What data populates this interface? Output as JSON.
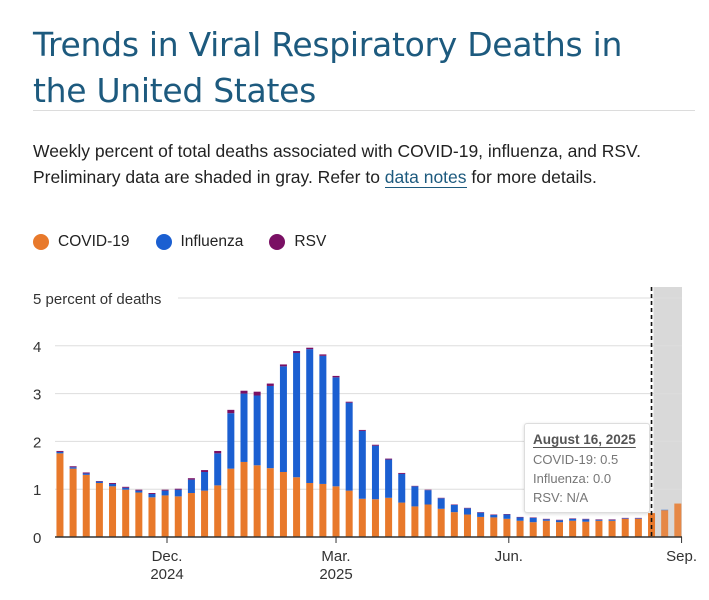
{
  "header": {
    "title": "Trends in Viral Respiratory Deaths in the United States",
    "subtitle_line1": "Weekly percent of total deaths associated with COVID-19, influenza, and RSV.",
    "subtitle_line2_pre": "Preliminary data are shaded in gray. Refer to ",
    "subtitle_link": "data notes",
    "subtitle_line2_post": " for more details."
  },
  "legend": [
    {
      "label": "COVID-19",
      "color": "#e8792b"
    },
    {
      "label": "Influenza",
      "color": "#1b5fd1"
    },
    {
      "label": "RSV",
      "color": "#7a1064"
    }
  ],
  "tooltip": {
    "date": "August 16, 2025",
    "covid": "COVID-19: 0.5",
    "flu": "Influenza: 0.0",
    "rsv": "RSV: N/A"
  },
  "chart_data": {
    "type": "bar",
    "stacked": true,
    "ylabel": "percent of deaths",
    "ylim": [
      0,
      5
    ],
    "yticks": [
      "0",
      "1",
      "2",
      "3",
      "4",
      "5 percent of deaths"
    ],
    "xticks": [
      {
        "date": "2024-12-01",
        "label": "Dec.",
        "sublabel": "2024"
      },
      {
        "date": "2025-03-01",
        "label": "Mar.",
        "sublabel": "2025"
      },
      {
        "date": "2025-06-01",
        "label": "Jun.",
        "sublabel": ""
      },
      {
        "date": "2025-09-01",
        "label": "Sep.",
        "sublabel": ""
      }
    ],
    "grid": true,
    "preliminary_from": "2025-08-16",
    "highlighted_week": "2025-08-16",
    "preliminary_color": "#d9d9d9",
    "x": [
      "2024-10-05",
      "2024-10-12",
      "2024-10-19",
      "2024-10-26",
      "2024-11-02",
      "2024-11-09",
      "2024-11-16",
      "2024-11-23",
      "2024-11-30",
      "2024-12-07",
      "2024-12-14",
      "2024-12-21",
      "2024-12-28",
      "2025-01-04",
      "2025-01-11",
      "2025-01-18",
      "2025-01-25",
      "2025-02-01",
      "2025-02-08",
      "2025-02-15",
      "2025-02-22",
      "2025-03-01",
      "2025-03-08",
      "2025-03-15",
      "2025-03-22",
      "2025-03-29",
      "2025-04-05",
      "2025-04-12",
      "2025-04-19",
      "2025-04-26",
      "2025-05-03",
      "2025-05-10",
      "2025-05-17",
      "2025-05-24",
      "2025-05-31",
      "2025-06-07",
      "2025-06-14",
      "2025-06-21",
      "2025-06-28",
      "2025-07-05",
      "2025-07-12",
      "2025-07-19",
      "2025-07-26",
      "2025-08-02",
      "2025-08-09",
      "2025-08-16",
      "2025-08-23",
      "2025-08-30"
    ],
    "series": [
      {
        "name": "COVID-19",
        "values": [
          1.75,
          1.43,
          1.3,
          1.13,
          1.06,
          0.99,
          0.93,
          0.83,
          0.87,
          0.85,
          0.92,
          0.97,
          1.08,
          1.43,
          1.57,
          1.5,
          1.44,
          1.36,
          1.25,
          1.13,
          1.11,
          1.06,
          0.97,
          0.8,
          0.79,
          0.82,
          0.72,
          0.64,
          0.68,
          0.59,
          0.52,
          0.47,
          0.42,
          0.41,
          0.38,
          0.34,
          0.31,
          0.34,
          0.31,
          0.34,
          0.32,
          0.34,
          0.34,
          0.38,
          0.38,
          0.5,
          0.56,
          0.7
        ]
      },
      {
        "name": "Influenza",
        "values": [
          0.03,
          0.03,
          0.03,
          0.03,
          0.05,
          0.04,
          0.04,
          0.07,
          0.1,
          0.14,
          0.28,
          0.39,
          0.67,
          1.16,
          1.43,
          1.46,
          1.72,
          2.21,
          2.6,
          2.8,
          2.68,
          2.28,
          1.84,
          1.42,
          1.12,
          0.8,
          0.6,
          0.42,
          0.3,
          0.22,
          0.15,
          0.13,
          0.09,
          0.05,
          0.09,
          0.07,
          0.09,
          0.03,
          0.04,
          0.04,
          0.05,
          0.02,
          0.02,
          0.01,
          0.01,
          0.0,
          0.01,
          0.0
        ]
      },
      {
        "name": "RSV",
        "values": [
          0.02,
          0.02,
          0.02,
          0.01,
          0.02,
          0.02,
          0.02,
          0.02,
          0.02,
          0.02,
          0.03,
          0.04,
          0.05,
          0.07,
          0.06,
          0.08,
          0.05,
          0.04,
          0.04,
          0.03,
          0.03,
          0.03,
          0.02,
          0.02,
          0.02,
          0.02,
          0.02,
          0.01,
          0.01,
          0.01,
          0.01,
          0.01,
          0.01,
          0.01,
          0.01,
          0.01,
          0.01,
          0.01,
          0.01,
          0.01,
          0.01,
          0.01,
          0.01,
          0.01,
          0.01,
          null,
          null,
          null
        ]
      }
    ]
  }
}
